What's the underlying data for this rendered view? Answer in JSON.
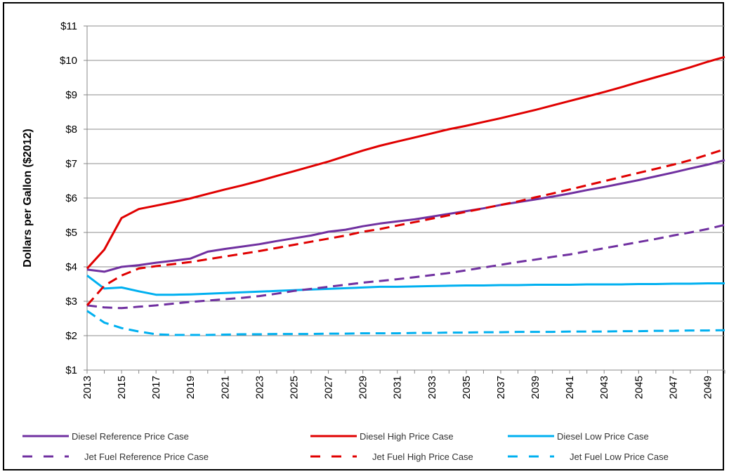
{
  "chart_data": {
    "type": "line",
    "title": "",
    "xlabel": "",
    "ylabel": "Dollars per Gallon ($2012)",
    "ylim": [
      1,
      11
    ],
    "ytick_labels": [
      "$1",
      "$2",
      "$3",
      "$4",
      "$5",
      "$6",
      "$7",
      "$8",
      "$9",
      "$10",
      "$11"
    ],
    "x": [
      2013,
      2014,
      2015,
      2016,
      2017,
      2018,
      2019,
      2020,
      2021,
      2022,
      2023,
      2024,
      2025,
      2026,
      2027,
      2028,
      2029,
      2030,
      2031,
      2032,
      2033,
      2034,
      2035,
      2036,
      2037,
      2038,
      2039,
      2040,
      2041,
      2042,
      2043,
      2044,
      2045,
      2046,
      2047,
      2048,
      2049,
      2050
    ],
    "xtick_labels": [
      "2013",
      "2015",
      "2017",
      "2019",
      "2021",
      "2023",
      "2025",
      "2027",
      "2029",
      "2031",
      "2033",
      "2035",
      "2037",
      "2039",
      "2041",
      "2043",
      "2045",
      "2047",
      "2049"
    ],
    "grid": true,
    "legend_position": "bottom",
    "series": [
      {
        "name": "Diesel Reference Price Case",
        "color": "#7030a0",
        "dash": "solid",
        "values": [
          3.92,
          3.86,
          4.0,
          4.05,
          4.12,
          4.18,
          4.24,
          4.44,
          4.52,
          4.59,
          4.66,
          4.75,
          4.83,
          4.91,
          5.02,
          5.08,
          5.18,
          5.26,
          5.32,
          5.38,
          5.46,
          5.54,
          5.62,
          5.7,
          5.8,
          5.88,
          5.96,
          6.04,
          6.13,
          6.23,
          6.32,
          6.42,
          6.52,
          6.63,
          6.74,
          6.86,
          6.97,
          7.1
        ]
      },
      {
        "name": "Diesel High Price Case",
        "color": "#e00000",
        "dash": "solid",
        "values": [
          3.95,
          4.5,
          5.42,
          5.68,
          5.78,
          5.88,
          5.99,
          6.12,
          6.25,
          6.37,
          6.5,
          6.64,
          6.78,
          6.92,
          7.06,
          7.22,
          7.38,
          7.52,
          7.64,
          7.76,
          7.88,
          8.0,
          8.1,
          8.21,
          8.32,
          8.44,
          8.56,
          8.69,
          8.82,
          8.95,
          9.08,
          9.22,
          9.37,
          9.51,
          9.65,
          9.8,
          9.96,
          10.1
        ]
      },
      {
        "name": "Diesel Low Price Case",
        "color": "#00b0f0",
        "dash": "solid",
        "values": [
          3.75,
          3.37,
          3.4,
          3.29,
          3.19,
          3.19,
          3.2,
          3.22,
          3.24,
          3.26,
          3.28,
          3.3,
          3.32,
          3.34,
          3.36,
          3.38,
          3.4,
          3.42,
          3.42,
          3.43,
          3.44,
          3.45,
          3.46,
          3.46,
          3.47,
          3.47,
          3.48,
          3.48,
          3.48,
          3.49,
          3.49,
          3.49,
          3.5,
          3.5,
          3.51,
          3.51,
          3.52,
          3.52
        ]
      },
      {
        "name": "Jet Fuel Reference Price Case",
        "color": "#7030a0",
        "dash": "dashed",
        "values": [
          2.88,
          2.82,
          2.8,
          2.84,
          2.88,
          2.93,
          2.98,
          3.02,
          3.06,
          3.1,
          3.15,
          3.22,
          3.3,
          3.36,
          3.42,
          3.48,
          3.54,
          3.59,
          3.64,
          3.7,
          3.76,
          3.82,
          3.9,
          3.98,
          4.06,
          4.14,
          4.21,
          4.29,
          4.36,
          4.45,
          4.54,
          4.63,
          4.72,
          4.81,
          4.91,
          5.0,
          5.1,
          5.22
        ]
      },
      {
        "name": "Jet Fuel High Price Case",
        "color": "#e00000",
        "dash": "dashed",
        "values": [
          2.88,
          3.45,
          3.75,
          3.95,
          4.02,
          4.08,
          4.14,
          4.22,
          4.3,
          4.38,
          4.46,
          4.55,
          4.64,
          4.73,
          4.82,
          4.91,
          5.02,
          5.1,
          5.2,
          5.3,
          5.4,
          5.5,
          5.6,
          5.7,
          5.8,
          5.9,
          6.02,
          6.13,
          6.25,
          6.37,
          6.49,
          6.61,
          6.73,
          6.85,
          6.97,
          7.1,
          7.26,
          7.42
        ]
      },
      {
        "name": "Jet Fuel Low Price Case",
        "color": "#00b0f0",
        "dash": "dashed",
        "values": [
          2.72,
          2.38,
          2.22,
          2.12,
          2.04,
          2.02,
          2.02,
          2.02,
          2.03,
          2.04,
          2.04,
          2.05,
          2.05,
          2.05,
          2.06,
          2.06,
          2.07,
          2.07,
          2.07,
          2.08,
          2.08,
          2.09,
          2.09,
          2.1,
          2.1,
          2.11,
          2.11,
          2.11,
          2.12,
          2.12,
          2.12,
          2.13,
          2.13,
          2.14,
          2.14,
          2.15,
          2.15,
          2.16
        ]
      }
    ]
  }
}
